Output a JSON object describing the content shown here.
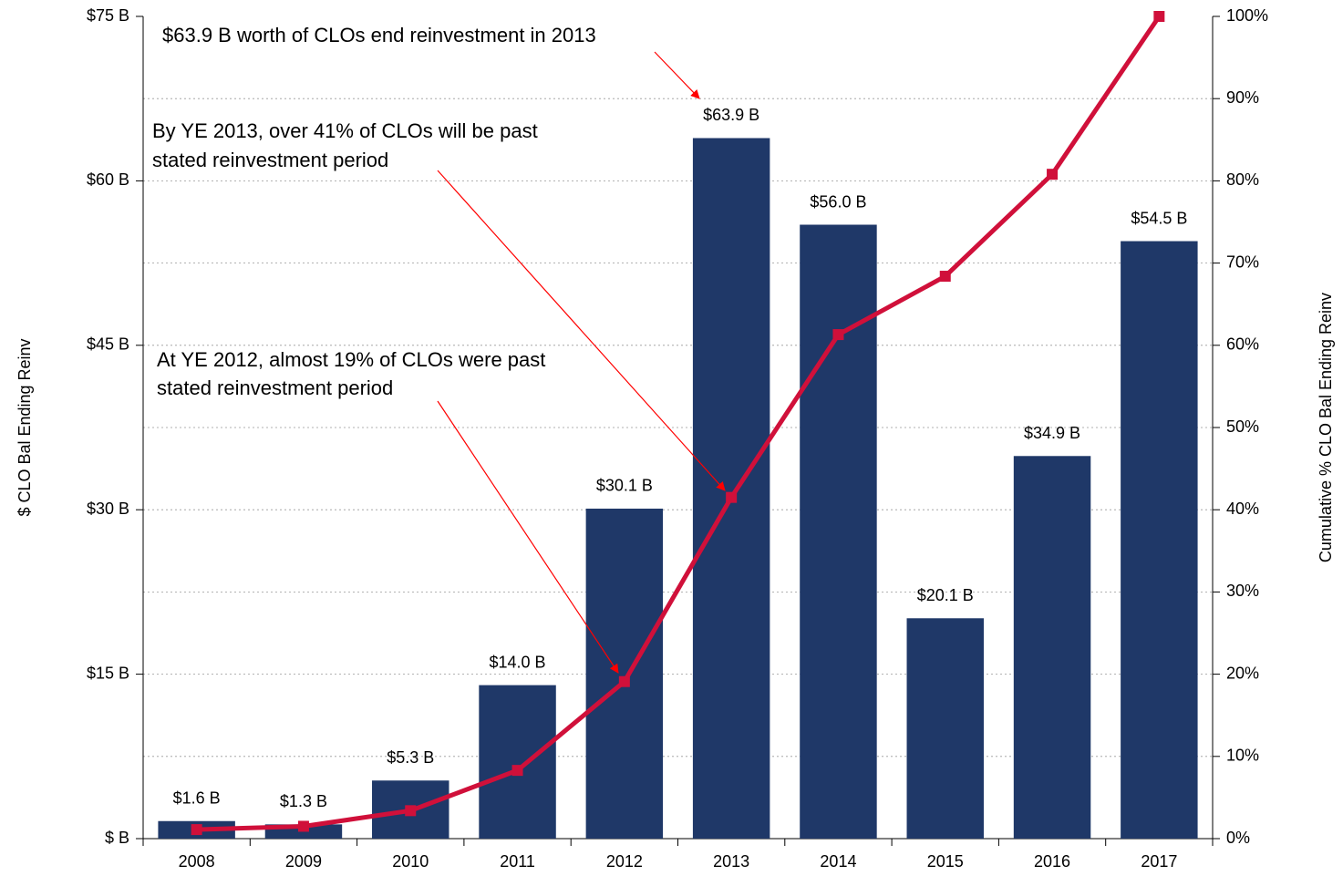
{
  "chart_data": {
    "type": "bar",
    "y_label": "$ CLO Bal Ending Reinv",
    "y2_label": "Cumulative % CLO Bal Ending Reinv",
    "categories": [
      "2008",
      "2009",
      "2010",
      "2011",
      "2012",
      "2013",
      "2014",
      "2015",
      "2016",
      "2017"
    ],
    "series": [
      {
        "type": "bar",
        "color": "#1f3868",
        "values": [
          1.6,
          1.3,
          5.3,
          14.0,
          30.1,
          63.9,
          56.0,
          20.1,
          34.9,
          54.5
        ],
        "value_labels": [
          "$1.6 B",
          "$1.3 B",
          "$5.3 B",
          "$14.0 B",
          "$30.1 B",
          "$63.9 B",
          "$56.0 B",
          "$20.1 B",
          "$34.9 B",
          "$54.5 B"
        ]
      },
      {
        "type": "line",
        "axis": "y2",
        "color": "#d0103a",
        "values": [
          1.1,
          1.5,
          3.4,
          8.3,
          19.1,
          41.5,
          61.3,
          68.4,
          80.8,
          100
        ]
      }
    ],
    "ylim": [
      0,
      75
    ],
    "yticks": [
      {
        "value": 0,
        "label": "$ B"
      },
      {
        "value": 15,
        "label": "$15 B"
      },
      {
        "value": 30,
        "label": "$30 B"
      },
      {
        "value": 45,
        "label": "$45 B"
      },
      {
        "value": 60,
        "label": "$60 B"
      },
      {
        "value": 75,
        "label": "$75 B"
      }
    ],
    "y2lim": [
      0,
      100
    ],
    "y2ticks": [
      {
        "value": 0,
        "label": "0%"
      },
      {
        "value": 10,
        "label": "10%"
      },
      {
        "value": 20,
        "label": "20%"
      },
      {
        "value": 30,
        "label": "30%"
      },
      {
        "value": 40,
        "label": "40%"
      },
      {
        "value": 50,
        "label": "50%"
      },
      {
        "value": 60,
        "label": "60%"
      },
      {
        "value": 70,
        "label": "70%"
      },
      {
        "value": 80,
        "label": "80%"
      },
      {
        "value": 90,
        "label": "90%"
      },
      {
        "value": 100,
        "label": "100%"
      }
    ],
    "grid": "y2",
    "annotations": [
      {
        "lines": [
          "$63.9 B worth of CLOs end reinvestment in 2013"
        ]
      },
      {
        "lines": [
          "By YE 2013, over 41% of CLOs will be past",
          "stated reinvestment period"
        ]
      },
      {
        "lines": [
          "At YE 2012, almost 19% of CLOs were past",
          "stated reinvestment period"
        ]
      }
    ]
  }
}
